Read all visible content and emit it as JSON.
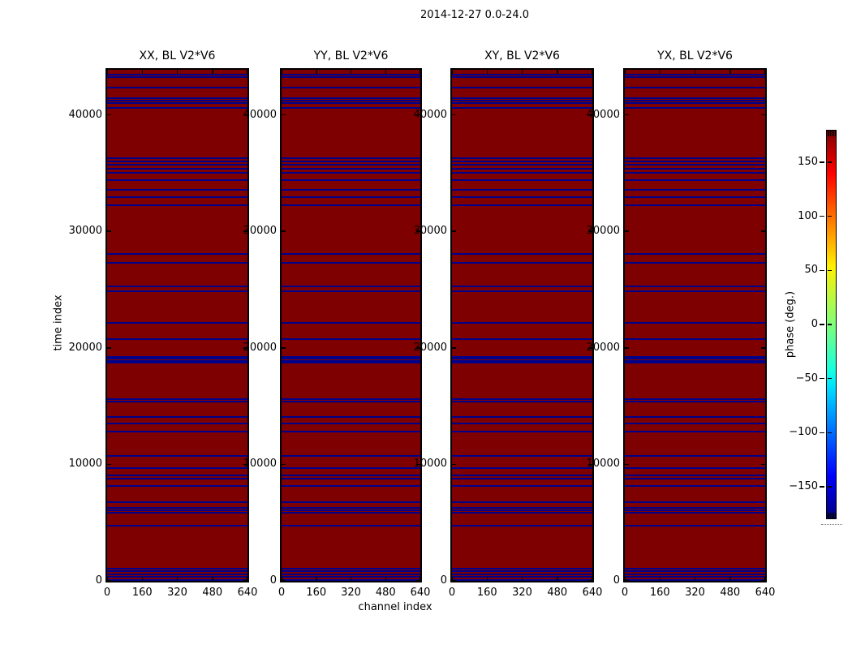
{
  "figure": {
    "title": "2014-12-27 0.0-24.0"
  },
  "chart_data": {
    "type": "heatmap",
    "title": "2014-12-27 0.0-24.0",
    "description": "Four phase waterfall panels (time index vs channel index), one per polarization product of baseline V2*V6. Background rows sit at +180 deg (dark red, jet colormap max); flagged/wrapped rows appear as navy horizontal stripes at -180 deg.",
    "panels": [
      {
        "title": "XX, BL V2*V6",
        "polarization": "XX",
        "baseline": "V2*V6"
      },
      {
        "title": "YY, BL V2*V6",
        "polarization": "YY",
        "baseline": "V2*V6"
      },
      {
        "title": "XY, BL V2*V6",
        "polarization": "XY",
        "baseline": "V2*V6"
      },
      {
        "title": "YX, BL V2*V6",
        "polarization": "YX",
        "baseline": "V2*V6"
      }
    ],
    "xlabel": "channel index",
    "ylabel": "time index",
    "xlim": [
      0,
      640
    ],
    "ylim": [
      0,
      43875
    ],
    "xticks": [
      0,
      160,
      320,
      480,
      640
    ],
    "yticks": [
      0,
      10000,
      20000,
      30000,
      40000
    ],
    "xtick_labels": [
      "0",
      "160",
      "320",
      "480",
      "640"
    ],
    "ytick_labels": [
      "0",
      "10000",
      "20000",
      "30000",
      "40000"
    ],
    "grid": false,
    "background_phase_deg": 180,
    "stripe_phase_deg": -180,
    "colors": {
      "panel_background": "#7f0000",
      "stripe": "#00008b",
      "axis": "#000000",
      "figure_background": "#ffffff"
    },
    "flagged_time_rows": [
      43430,
      43270,
      42350,
      41450,
      41240,
      41030,
      40620,
      36260,
      35980,
      35700,
      35360,
      35010,
      34430,
      33560,
      32940,
      32250,
      28100,
      27270,
      25260,
      24840,
      22140,
      20760,
      19240,
      19060,
      18900,
      18750,
      15570,
      15400,
      14050,
      13490,
      12800,
      10730,
      9690,
      9070,
      8790,
      8170,
      6780,
      6260,
      6090,
      5880,
      4710,
      1040,
      830,
      550,
      350,
      100
    ],
    "colorbar": {
      "label": "phase (deg.)",
      "colormap": "jet",
      "vmin": -180,
      "vmax": 180,
      "ticks": [
        150,
        100,
        50,
        0,
        -50,
        -100,
        -150
      ],
      "tick_labels": [
        "150",
        "100",
        "50",
        "0",
        "−50",
        "−100",
        "−150"
      ]
    }
  }
}
